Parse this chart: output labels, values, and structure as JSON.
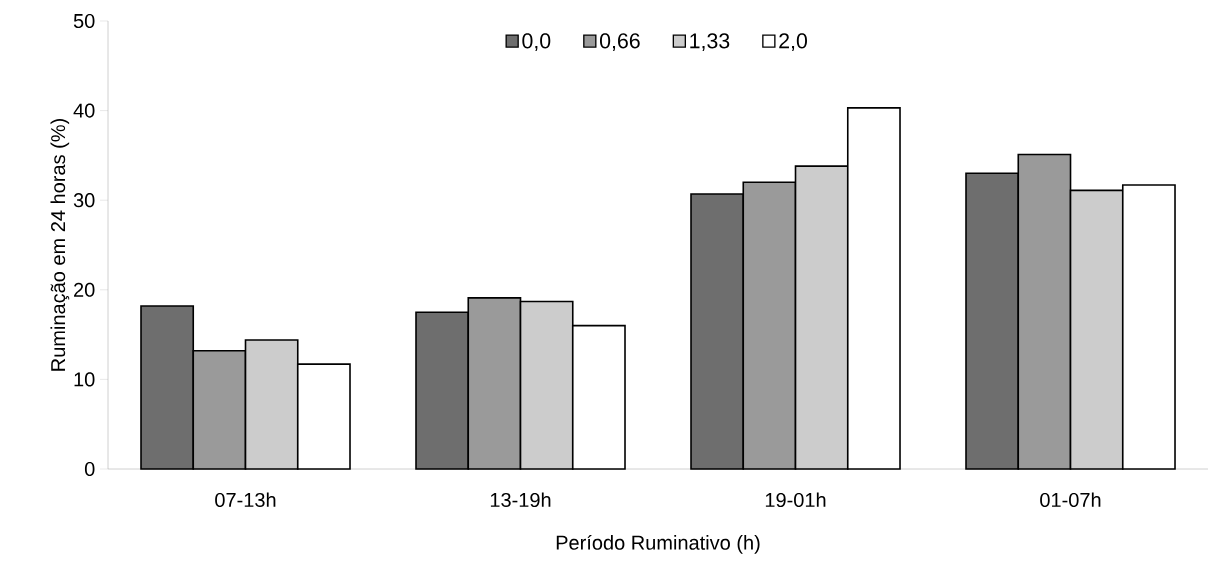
{
  "chart_data": {
    "type": "bar",
    "xlabel": "Período Ruminativo (h)",
    "ylabel": "Ruminação em 24 horas (%)",
    "categories": [
      "07-13h",
      "13-19h",
      "19-01h",
      "01-07h"
    ],
    "series": [
      {
        "name": "0,0",
        "color": "#6e6e6e",
        "values": [
          18.2,
          17.5,
          30.7,
          33.0
        ]
      },
      {
        "name": "0,66",
        "color": "#9a9a9a",
        "values": [
          13.2,
          19.1,
          32.0,
          35.1
        ]
      },
      {
        "name": "1,33",
        "color": "#cccccc",
        "values": [
          14.4,
          18.7,
          33.8,
          31.1
        ]
      },
      {
        "name": "2,0",
        "color": "#ffffff",
        "values": [
          11.7,
          16.0,
          40.3,
          31.7
        ]
      }
    ],
    "ylim": [
      0,
      50
    ],
    "yticks": [
      0,
      10,
      20,
      30,
      40,
      50
    ],
    "grid": false,
    "legend": "top"
  }
}
